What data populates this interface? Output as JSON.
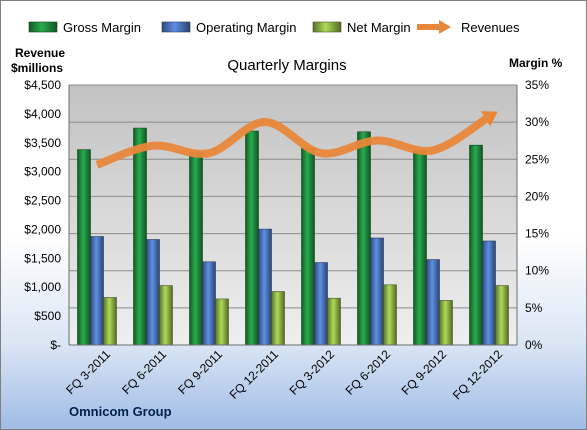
{
  "chart_data": {
    "type": "bar",
    "title": "Quarterly Margins",
    "footer": "Omnicom Group",
    "y_left_label_line1": "Revenue",
    "y_left_label_line2": "$millions",
    "y_right_label": "Margin %",
    "categories": [
      "FQ 3-2011",
      "FQ 6-2011",
      "FQ 9-2011",
      "FQ 12-2011",
      "FQ 3-2012",
      "FQ 6-2012",
      "FQ 9-2012",
      "FQ 12-2012"
    ],
    "series": [
      {
        "name": "Gross Margin",
        "kind": "bar",
        "axis": "right",
        "color": "#1f8a3c",
        "values": [
          26.3,
          29.2,
          25.9,
          28.8,
          26.5,
          28.7,
          26.2,
          26.9
        ]
      },
      {
        "name": "Operating Margin",
        "kind": "bar",
        "axis": "right",
        "color": "#4a72b8",
        "values": [
          14.6,
          14.2,
          11.2,
          15.6,
          11.1,
          14.4,
          11.5,
          14.0
        ]
      },
      {
        "name": "Net Margin",
        "kind": "bar",
        "axis": "right",
        "color": "#8cae46",
        "values": [
          6.4,
          8.0,
          6.2,
          7.2,
          6.3,
          8.1,
          6.0,
          8.0
        ]
      },
      {
        "name": "Revenues",
        "kind": "line",
        "axis": "left",
        "color": "#e8873a",
        "values": [
          3120,
          3450,
          3320,
          3860,
          3320,
          3540,
          3370,
          3950
        ]
      }
    ],
    "y_left": {
      "min": 0,
      "max": 4500,
      "step": 500,
      "tick_labels": [
        "$-",
        "$500",
        "$1,000",
        "$1,500",
        "$2,000",
        "$2,500",
        "$3,000",
        "$3,500",
        "$4,000",
        "$4,500"
      ]
    },
    "y_right": {
      "min": 0,
      "max": 35,
      "step": 5,
      "tick_labels": [
        "0%",
        "5%",
        "10%",
        "15%",
        "20%",
        "25%",
        "30%",
        "35%"
      ]
    },
    "grid": true,
    "legend_position": "top"
  }
}
